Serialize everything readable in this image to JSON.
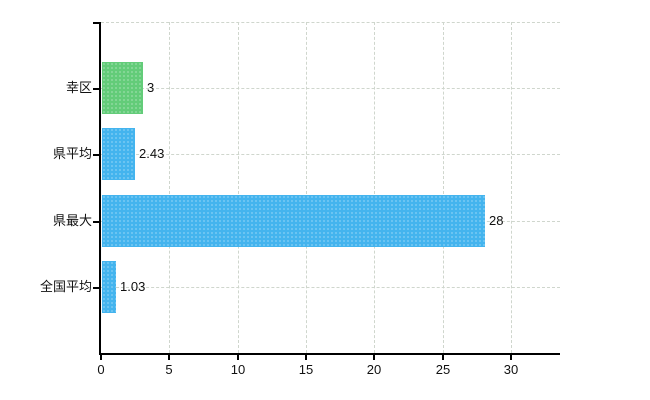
{
  "chart_data": {
    "type": "bar",
    "orientation": "horizontal",
    "title": "",
    "xlabel": "",
    "ylabel": "",
    "categories": [
      "幸区",
      "県平均",
      "県最大",
      "全国平均"
    ],
    "values": [
      3,
      2.43,
      28,
      1.03
    ],
    "data_labels": [
      "3",
      "2.43",
      "28",
      "1.03"
    ],
    "bar_colors": [
      "#63cc79",
      "#44b4ee",
      "#44b4ee",
      "#44b4ee"
    ],
    "x_ticks": [
      "0",
      "5",
      "10",
      "15",
      "20",
      "25",
      "30"
    ],
    "x_tick_values": [
      0,
      5,
      10,
      15,
      20,
      25,
      30
    ],
    "xlim": [
      0,
      33.6
    ],
    "grid": true,
    "grid_style": "dashed",
    "legend": false
  },
  "colors": {
    "background": "#ffffff",
    "bar_green": "#63cc79",
    "bar_blue": "#44b4ee",
    "grid": "#cfd6cd",
    "axis": "#000000",
    "text": "#111111"
  }
}
